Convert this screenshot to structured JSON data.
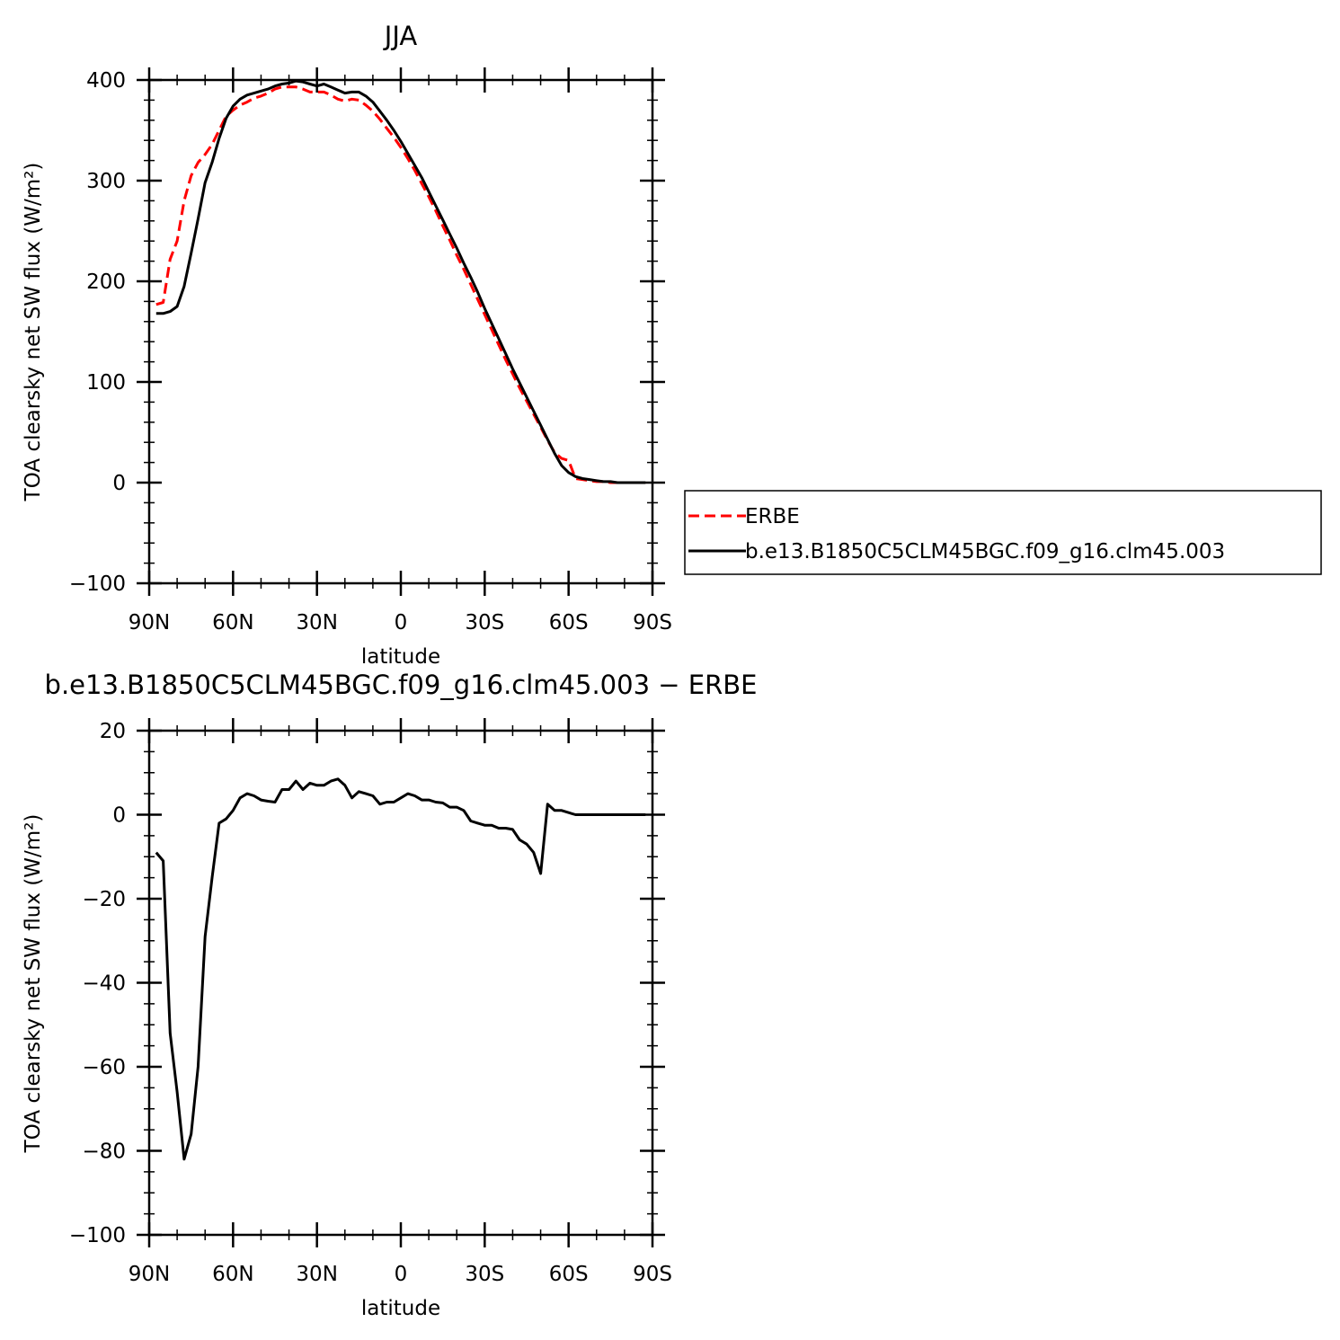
{
  "chart_data": [
    {
      "type": "line",
      "title": "JJA",
      "xlabel": "latitude",
      "ylabel": "TOA clearsky net SW flux (W/m²)",
      "xlim": [
        90,
        -90
      ],
      "ylim": [
        -100,
        400
      ],
      "xticks": [
        90,
        60,
        30,
        0,
        -30,
        -60,
        -90
      ],
      "xtick_labels": [
        "90N",
        "60N",
        "30N",
        "0",
        "30S",
        "60S",
        "90S"
      ],
      "yticks": [
        -100,
        0,
        100,
        200,
        300,
        400
      ],
      "ytick_labels": [
        "−100",
        "0",
        "100",
        "200",
        "300",
        "400"
      ],
      "grid": false,
      "legend_placement": "right",
      "series": [
        {
          "name": "ERBE",
          "color": "#ff0000",
          "dash": "dashed",
          "x": [
            87.5,
            85,
            82.5,
            80,
            77.5,
            75,
            72.5,
            70,
            67.5,
            65,
            62.5,
            60,
            57.5,
            55,
            52.5,
            50,
            47.5,
            45,
            42.5,
            40,
            37.5,
            35,
            32.5,
            30,
            27.5,
            25,
            22.5,
            20,
            17.5,
            15,
            12.5,
            10,
            7.5,
            5,
            2.5,
            0,
            -2.5,
            -5,
            -7.5,
            -10,
            -12.5,
            -15,
            -17.5,
            -20,
            -22.5,
            -25,
            -27.5,
            -30,
            -32.5,
            -35,
            -37.5,
            -40,
            -42.5,
            -45,
            -47.5,
            -50,
            -52.5,
            -55,
            -57.5,
            -60,
            -62.5,
            -65,
            -67.5,
            -70,
            -72.5,
            -75,
            -77.5,
            -80,
            -82.5,
            -85,
            -87.5
          ],
          "values": [
            177,
            179,
            222,
            240,
            280,
            305,
            318,
            326,
            336,
            350,
            364,
            370,
            375,
            378,
            382,
            384,
            387,
            391,
            393,
            393,
            393,
            391,
            388,
            388,
            388,
            385,
            381,
            379,
            381,
            380,
            375,
            369,
            361,
            352,
            343,
            333,
            322,
            310,
            297,
            284,
            270,
            255,
            241,
            226,
            212,
            197,
            182,
            167,
            152,
            137,
            122,
            108,
            94,
            81,
            68,
            55,
            42,
            30,
            24,
            22,
            4,
            3,
            2,
            1,
            1,
            0,
            0,
            0,
            0,
            0,
            0
          ]
        },
        {
          "name": "b.e13.B1850C5CLM45BGC.f09_g16.clm45.003",
          "color": "#000000",
          "dash": "solid",
          "x": [
            87.5,
            85,
            82.5,
            80,
            77.5,
            75,
            72.5,
            70,
            67.5,
            65,
            62.5,
            60,
            57.5,
            55,
            52.5,
            50,
            47.5,
            45,
            42.5,
            40,
            37.5,
            35,
            32.5,
            30,
            27.5,
            25,
            22.5,
            20,
            17.5,
            15,
            12.5,
            10,
            7.5,
            5,
            2.5,
            0,
            -2.5,
            -5,
            -7.5,
            -10,
            -12.5,
            -15,
            -17.5,
            -20,
            -22.5,
            -25,
            -27.5,
            -30,
            -32.5,
            -35,
            -37.5,
            -40,
            -42.5,
            -45,
            -47.5,
            -50,
            -52.5,
            -55,
            -57.5,
            -60,
            -62.5,
            -65,
            -67.5,
            -70,
            -72.5,
            -75,
            -77.5,
            -80,
            -82.5,
            -85,
            -87.5
          ],
          "values": [
            168,
            168,
            170,
            175,
            195,
            228,
            262,
            298,
            318,
            342,
            362,
            374,
            381,
            385,
            387,
            389,
            391,
            394,
            396,
            397,
            399,
            398,
            396,
            394,
            396,
            393,
            390,
            387,
            388,
            388,
            384,
            378,
            369,
            360,
            350,
            339,
            327,
            315,
            303,
            289,
            275,
            261,
            247,
            233,
            218,
            204,
            189,
            173,
            158,
            143,
            128,
            113,
            99,
            85,
            71,
            57,
            43,
            29,
            17,
            10,
            6,
            4,
            3,
            2,
            1,
            1,
            0,
            0,
            0,
            0,
            0
          ]
        }
      ]
    },
    {
      "type": "line",
      "title": "b.e13.B1850C5CLM45BGC.f09_g16.clm45.003 − ERBE",
      "xlabel": "latitude",
      "ylabel": "TOA clearsky net SW flux (W/m²)",
      "xlim": [
        90,
        -90
      ],
      "ylim": [
        -100,
        20
      ],
      "xticks": [
        90,
        60,
        30,
        0,
        -30,
        -60,
        -90
      ],
      "xtick_labels": [
        "90N",
        "60N",
        "30N",
        "0",
        "30S",
        "60S",
        "90S"
      ],
      "yticks": [
        -100,
        -80,
        -60,
        -40,
        -20,
        0,
        20
      ],
      "ytick_labels": [
        "−100",
        "−80",
        "−60",
        "−40",
        "−20",
        "0",
        "20"
      ],
      "grid": false,
      "series": [
        {
          "color": "#000000",
          "dash": "solid",
          "x": [
            87.5,
            85,
            82.5,
            80,
            77.5,
            75,
            72.5,
            70,
            67.5,
            65,
            62.5,
            60,
            57.5,
            55,
            52.5,
            50,
            47.5,
            45,
            42.5,
            40,
            37.5,
            35,
            32.5,
            30,
            27.5,
            25,
            22.5,
            20,
            17.5,
            15,
            12.5,
            10,
            7.5,
            5,
            2.5,
            0,
            -2.5,
            -5,
            -7.5,
            -10,
            -12.5,
            -15,
            -17.5,
            -20,
            -22.5,
            -25,
            -27.5,
            -30,
            -32.5,
            -35,
            -37.5,
            -40,
            -42.5,
            -45,
            -47.5,
            -50,
            -52.5,
            -55,
            -57.5,
            -60,
            -62.5,
            -65,
            -67.5,
            -70,
            -72.5,
            -75,
            -77.5,
            -80,
            -82.5,
            -85,
            -87.5
          ],
          "values": [
            -9,
            -11,
            -52,
            -66,
            -82,
            -76,
            -60,
            -29,
            -15,
            -2,
            -1,
            1,
            4,
            5,
            4.5,
            3.5,
            3.2,
            3,
            6,
            6,
            8,
            6,
            7.5,
            7,
            7,
            8,
            8.5,
            7,
            4,
            5.5,
            5,
            4.5,
            2.5,
            3,
            3,
            4,
            5,
            4.5,
            3.5,
            3.5,
            3,
            2.8,
            1.8,
            1.8,
            1,
            -1.5,
            -2,
            -2.5,
            -2.5,
            -3.2,
            -3.2,
            -3.5,
            -6,
            -7,
            -9,
            -14,
            2.5,
            1,
            1,
            0.5,
            0,
            0,
            0,
            0,
            0,
            0,
            0,
            0,
            0,
            0,
            0
          ]
        }
      ]
    }
  ],
  "legend": {
    "entries": [
      "ERBE",
      "b.e13.B1850C5CLM45BGC.f09_g16.clm45.003"
    ]
  }
}
